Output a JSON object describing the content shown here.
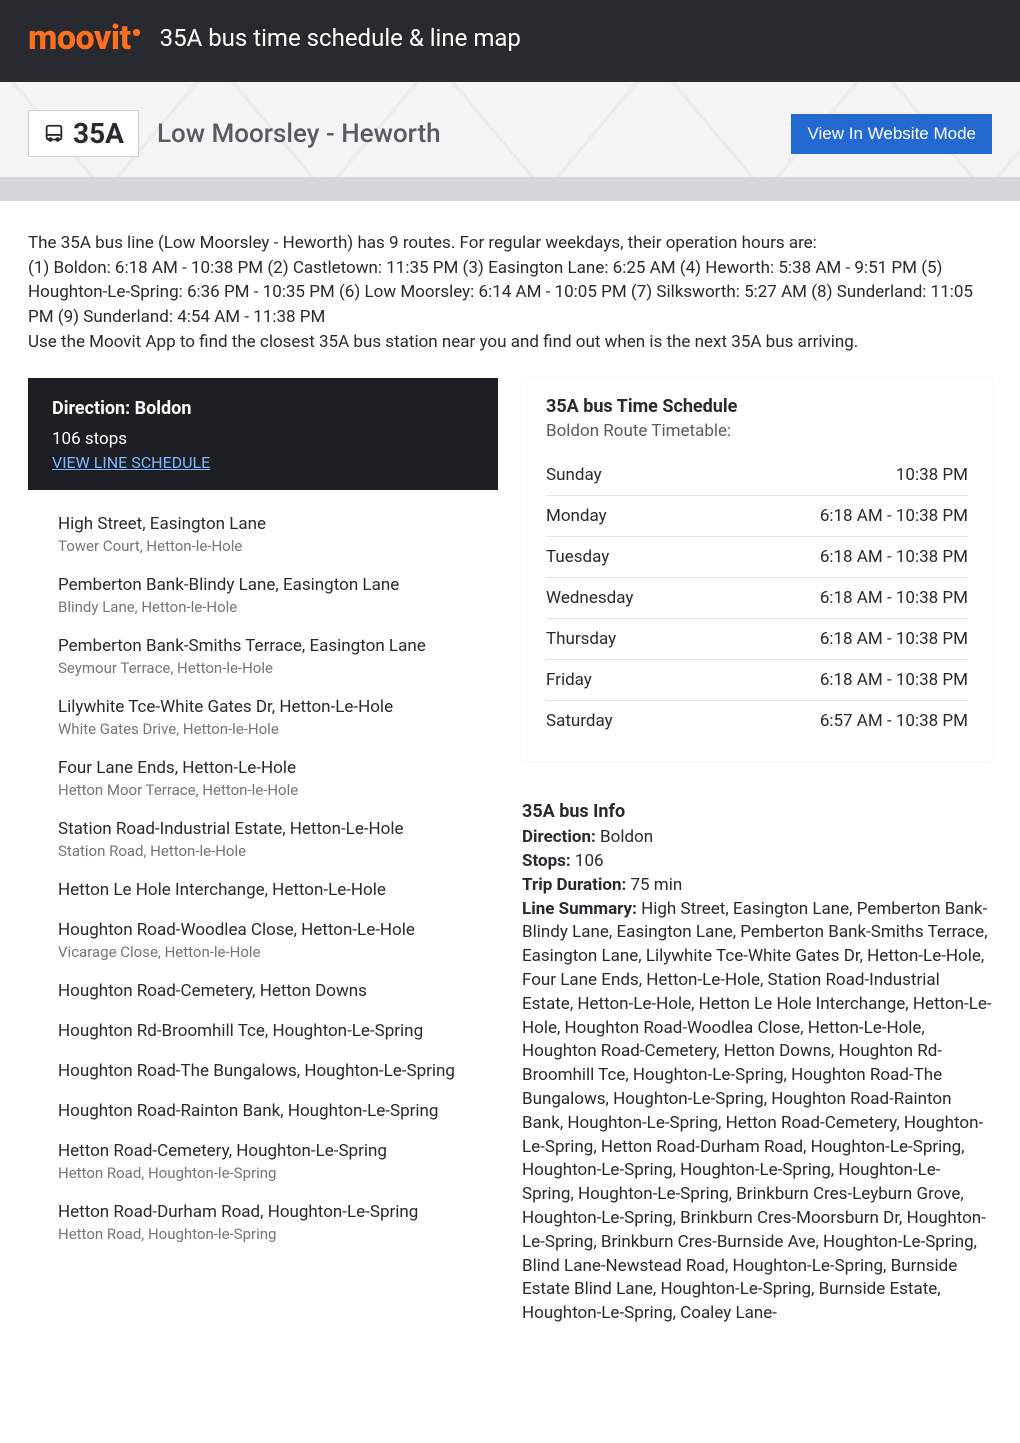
{
  "brand": {
    "name": "moovit",
    "color": "#ff6f20"
  },
  "page_title": "35A bus time schedule & line map",
  "route": {
    "badge": "35A",
    "name": "Low Moorsley - Heworth"
  },
  "website_button": "View In Website Mode",
  "intro_lines": [
    "The 35A bus line (Low Moorsley - Heworth) has 9 routes. For regular weekdays, their operation hours are:",
    "(1) Boldon: 6:18 AM - 10:38 PM (2) Castletown: 11:35 PM (3) Easington Lane: 6:25 AM (4) Heworth: 5:38 AM - 9:51 PM (5) Houghton-Le-Spring: 6:36 PM - 10:35 PM (6) Low Moorsley: 6:14 AM - 10:05 PM (7) Silksworth: 5:27 AM (8) Sunderland: 11:05 PM (9) Sunderland: 4:54 AM - 11:38 PM",
    "Use the Moovit App to find the closest 35A bus station near you and find out when is the next 35A bus arriving."
  ],
  "direction_box": {
    "label": "Direction: Boldon",
    "stops_count": "106 stops",
    "link": "VIEW LINE SCHEDULE"
  },
  "stops": [
    {
      "name": "High Street, Easington Lane",
      "sub": "Tower Court, Hetton-le-Hole"
    },
    {
      "name": "Pemberton Bank-Blindy Lane, Easington Lane",
      "sub": "Blindy Lane, Hetton-le-Hole"
    },
    {
      "name": "Pemberton Bank-Smiths Terrace, Easington Lane",
      "sub": "Seymour Terrace, Hetton-le-Hole"
    },
    {
      "name": "Lilywhite Tce-White Gates Dr, Hetton-Le-Hole",
      "sub": "White Gates Drive, Hetton-le-Hole"
    },
    {
      "name": "Four Lane Ends, Hetton-Le-Hole",
      "sub": "Hetton Moor Terrace, Hetton-le-Hole"
    },
    {
      "name": "Station Road-Industrial Estate, Hetton-Le-Hole",
      "sub": "Station Road, Hetton-le-Hole"
    },
    {
      "name": "Hetton Le Hole Interchange, Hetton-Le-Hole",
      "sub": ""
    },
    {
      "name": "Houghton Road-Woodlea Close, Hetton-Le-Hole",
      "sub": "Vicarage Close, Hetton-le-Hole"
    },
    {
      "name": "Houghton Road-Cemetery, Hetton Downs",
      "sub": ""
    },
    {
      "name": "Houghton Rd-Broomhill Tce, Houghton-Le-Spring",
      "sub": ""
    },
    {
      "name": "Houghton Road-The Bungalows, Houghton-Le-Spring",
      "sub": ""
    },
    {
      "name": "Houghton Road-Rainton Bank, Houghton-Le-Spring",
      "sub": ""
    },
    {
      "name": "Hetton Road-Cemetery, Houghton-Le-Spring",
      "sub": "Hetton Road, Houghton-le-Spring"
    },
    {
      "name": "Hetton Road-Durham Road, Houghton-Le-Spring",
      "sub": "Hetton Road, Houghton-le-Spring"
    }
  ],
  "schedule": {
    "title": "35A bus Time Schedule",
    "subtitle": "Boldon Route Timetable:",
    "rows": [
      {
        "day": "Sunday",
        "time": "10:38 PM"
      },
      {
        "day": "Monday",
        "time": "6:18 AM - 10:38 PM"
      },
      {
        "day": "Tuesday",
        "time": "6:18 AM - 10:38 PM"
      },
      {
        "day": "Wednesday",
        "time": "6:18 AM - 10:38 PM"
      },
      {
        "day": "Thursday",
        "time": "6:18 AM - 10:38 PM"
      },
      {
        "day": "Friday",
        "time": "6:18 AM - 10:38 PM"
      },
      {
        "day": "Saturday",
        "time": "6:57 AM - 10:38 PM"
      }
    ]
  },
  "info": {
    "title": "35A bus Info",
    "direction_label": "Direction:",
    "direction_value": " Boldon",
    "stops_label": "Stops:",
    "stops_value": " 106",
    "duration_label": "Trip Duration:",
    "duration_value": " 75 min",
    "summary_label": "Line Summary:",
    "summary_value": " High Street, Easington Lane, Pemberton Bank-Blindy Lane, Easington Lane, Pemberton Bank-Smiths Terrace, Easington Lane, Lilywhite Tce-White Gates Dr, Hetton-Le-Hole, Four Lane Ends, Hetton-Le-Hole, Station Road-Industrial Estate, Hetton-Le-Hole, Hetton Le Hole Interchange, Hetton-Le-Hole, Houghton Road-Woodlea Close, Hetton-Le-Hole, Houghton Road-Cemetery, Hetton Downs, Houghton Rd-Broomhill Tce, Houghton-Le-Spring, Houghton Road-The Bungalows, Houghton-Le-Spring, Houghton Road-Rainton Bank, Houghton-Le-Spring, Hetton Road-Cemetery, Houghton-Le-Spring, Hetton Road-Durham Road, Houghton-Le-Spring, Houghton-Le-Spring, Houghton-Le-Spring, Houghton-Le-Spring, Houghton-Le-Spring, Brinkburn Cres-Leyburn Grove, Houghton-Le-Spring, Brinkburn Cres-Moorsburn Dr, Houghton-Le-Spring, Brinkburn Cres-Burnside Ave, Houghton-Le-Spring, Blind Lane-Newstead Road, Houghton-Le-Spring, Burnside Estate Blind Lane, Houghton-Le-Spring, Burnside Estate, Houghton-Le-Spring, Coaley Lane-"
  }
}
